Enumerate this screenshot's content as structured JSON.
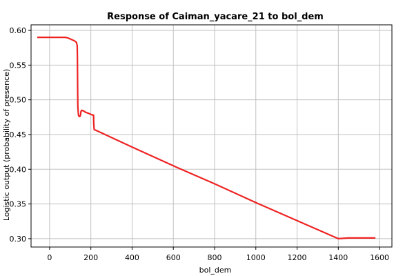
{
  "chart_data": {
    "type": "line",
    "title": "Response of Caiman_yacare_21 to bol_dem",
    "xlabel": "bol_dem",
    "ylabel": "Logistic output (probability of presence)",
    "xlim": [
      -90,
      1660
    ],
    "ylim": [
      0.288,
      0.608
    ],
    "x_ticks": [
      0,
      200,
      400,
      600,
      800,
      1000,
      1200,
      1400,
      1600
    ],
    "y_ticks": [
      0.3,
      0.35,
      0.4,
      0.45,
      0.5,
      0.55,
      0.6
    ],
    "x_tick_labels": [
      "0",
      "200",
      "400",
      "600",
      "800",
      "1000",
      "1200",
      "1400",
      "1600"
    ],
    "y_tick_labels": [
      "0.30",
      "0.35",
      "0.40",
      "0.45",
      "0.50",
      "0.55",
      "0.60"
    ],
    "grid": true,
    "series": [
      {
        "color": "#ee2222",
        "x": [
          -60,
          75,
          90,
          105,
          120,
          130,
          134,
          135,
          136,
          137,
          140,
          143,
          147,
          150,
          152,
          155,
          165,
          175,
          185,
          200,
          210,
          213,
          214,
          216,
          225,
          400,
          600,
          800,
          1000,
          1200,
          1400,
          1450,
          1580
        ],
        "y": [
          0.59,
          0.59,
          0.589,
          0.587,
          0.585,
          0.583,
          0.578,
          0.56,
          0.52,
          0.49,
          0.478,
          0.476,
          0.476,
          0.478,
          0.483,
          0.485,
          0.484,
          0.482,
          0.481,
          0.479,
          0.478,
          0.478,
          0.465,
          0.457,
          0.456,
          0.432,
          0.405,
          0.379,
          0.352,
          0.326,
          0.3,
          0.301,
          0.301
        ]
      }
    ]
  }
}
